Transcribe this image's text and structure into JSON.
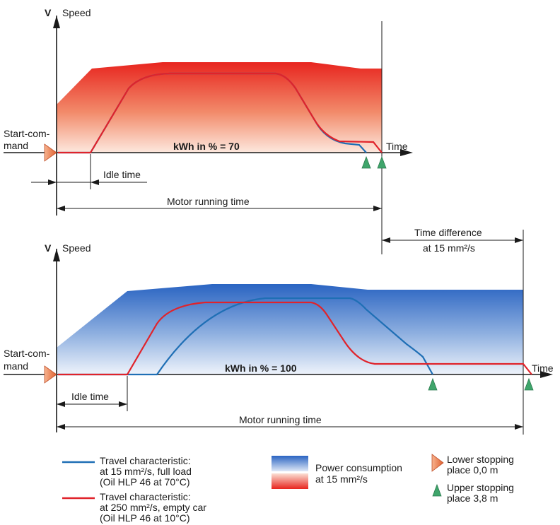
{
  "top_diagram": {
    "v_label": "V",
    "speed_label": "Speed",
    "start_command": [
      "Start-com-",
      "mand"
    ],
    "kwh_label": "kWh in % = 70",
    "time_label": "Time",
    "idle_time_label": "Idle time",
    "motor_running_label": "Motor running time"
  },
  "time_difference": {
    "line1": "Time difference",
    "line2": "at 15 mm²/s"
  },
  "bottom_diagram": {
    "v_label": "V",
    "speed_label": "Speed",
    "start_command": [
      "Start-com-",
      "mand"
    ],
    "kwh_label": "kWh in % = 100",
    "time_label": "Time",
    "idle_time_label": "Idle time",
    "motor_running_label": "Motor running time"
  },
  "legend": {
    "blue_travel": [
      "Travel characteristic:",
      "at 15 mm²/s, full load",
      "(Oil HLP 46 at 70°C)"
    ],
    "red_travel": [
      "Travel characteristic:",
      "at 250 mm²/s, empty car",
      "(Oil HLP 46 at 10°C)"
    ],
    "power": [
      "Power consumption",
      "at 15 mm²/s"
    ],
    "lower_stop": [
      "Lower stopping",
      "place 0,0 m"
    ],
    "upper_stop": [
      "Upper stopping",
      "place 3,8 m"
    ]
  },
  "colors": {
    "blue_line": "#1f6fb5",
    "red_line": "#e0232b",
    "red_fill": "#e8251f",
    "blue_fill": "#2a64c2",
    "green_marker": "#3fa56b",
    "orange_marker": "#e8754a"
  }
}
